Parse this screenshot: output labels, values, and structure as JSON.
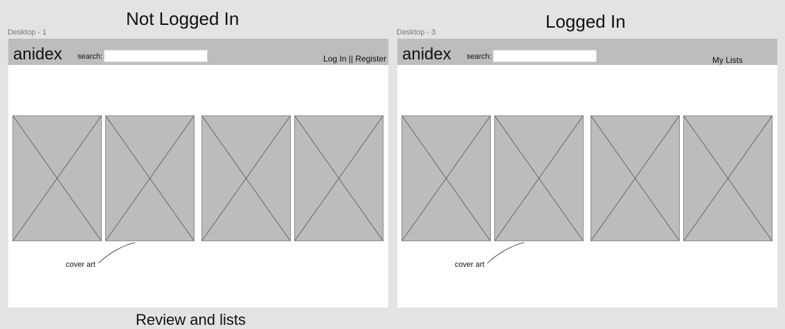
{
  "sections": [
    {
      "title": "Not Logged In"
    },
    {
      "title": "Logged In"
    }
  ],
  "frames": [
    {
      "label": "Desktop - 1",
      "header": {
        "logo": "anidex",
        "search_label": "search:",
        "search_value": "",
        "nav_link": "Log In || Register"
      },
      "covers": [
        "cover art",
        "cover art",
        "cover art",
        "cover art"
      ],
      "annotation": "cover art"
    },
    {
      "label": "Desktop - 3",
      "header": {
        "logo": "anidex",
        "search_label": "search:",
        "search_value": "",
        "nav_link": "My Lists"
      },
      "covers": [
        "cover art",
        "cover art",
        "cover art",
        "cover art"
      ],
      "annotation": "cover art"
    }
  ],
  "bottom_title": "Review and lists",
  "colors": {
    "canvas": "#e3e3e3",
    "header": "#bdbdbd",
    "placeholder": "#bcbcbc",
    "frame": "#ffffff"
  }
}
